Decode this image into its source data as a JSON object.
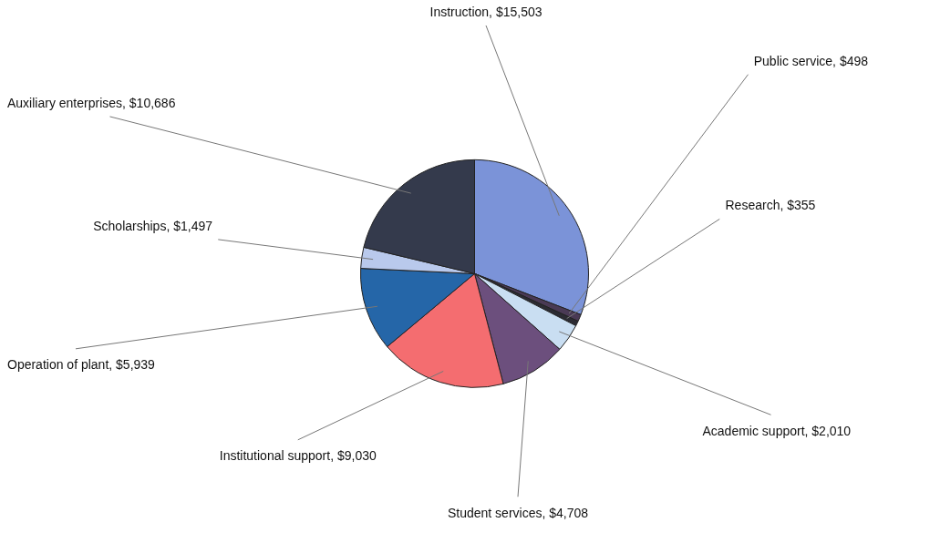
{
  "chart_data": {
    "type": "pie",
    "categories": [
      "Instruction",
      "Public service",
      "Research",
      "Academic support",
      "Student services",
      "Institutional support",
      "Operation of plant",
      "Scholarships",
      "Auxiliary enterprises"
    ],
    "values": [
      15503,
      498,
      355,
      2010,
      4708,
      9030,
      5939,
      1497,
      10686
    ],
    "value_labels": [
      "$15,503",
      "$498",
      "$355",
      "$2,010",
      "$4,708",
      "$9,030",
      "$5,939",
      "$1,497",
      "$10,686"
    ],
    "colors": [
      "#7b93d8",
      "#4a3a55",
      "#2b2b33",
      "#c9def2",
      "#6c4f7d",
      "#f46d70",
      "#2566a8",
      "#b9c9ec",
      "#343a4c"
    ]
  }
}
